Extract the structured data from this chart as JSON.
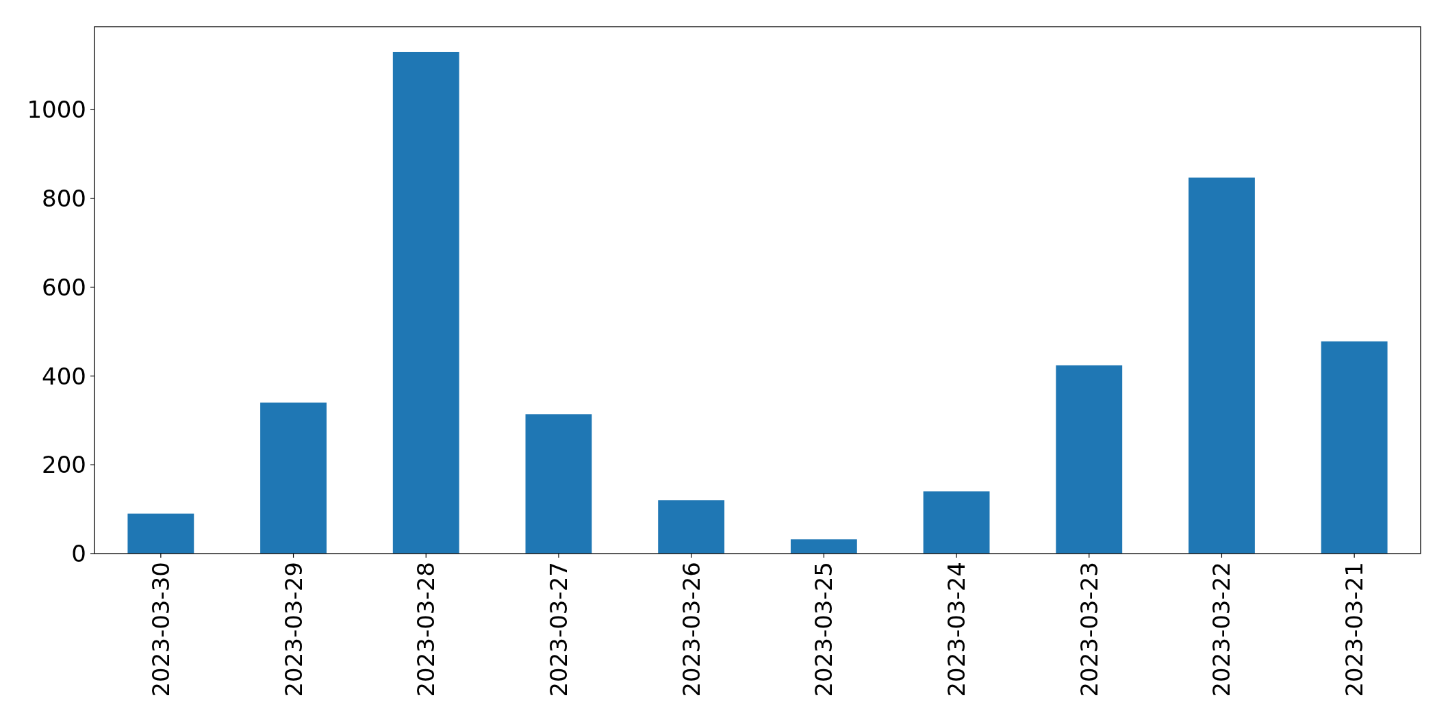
{
  "chart_data": {
    "type": "bar",
    "categories": [
      "2023-03-30",
      "2023-03-29",
      "2023-03-28",
      "2023-03-27",
      "2023-03-26",
      "2023-03-25",
      "2023-03-24",
      "2023-03-23",
      "2023-03-22",
      "2023-03-21"
    ],
    "values": [
      90,
      340,
      1130,
      314,
      120,
      32,
      140,
      424,
      847,
      478
    ],
    "color": "#1f77b4",
    "ylim": [
      0,
      1187
    ],
    "yticks": [
      0,
      200,
      400,
      600,
      800,
      1000
    ]
  }
}
